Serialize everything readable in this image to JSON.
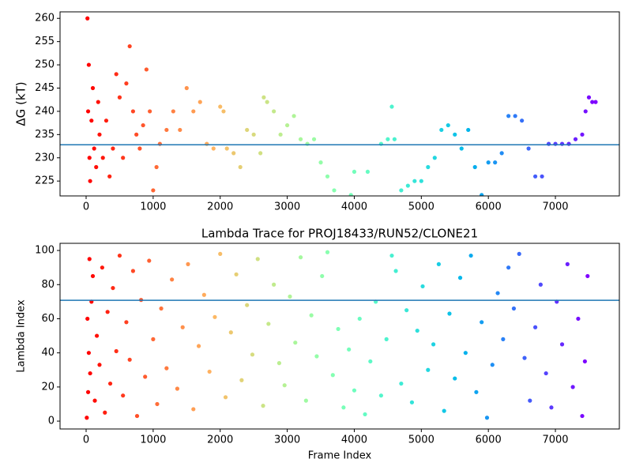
{
  "chart_data": [
    {
      "type": "scatter",
      "ylabel": "ΔG (kT)",
      "colormap": "rainbow_r",
      "x": [
        20,
        40,
        30,
        50,
        60,
        80,
        100,
        120,
        150,
        180,
        200,
        250,
        300,
        350,
        400,
        450,
        500,
        550,
        600,
        650,
        700,
        750,
        800,
        850,
        900,
        950,
        1000,
        1050,
        1100,
        1200,
        1300,
        1400,
        1500,
        1600,
        1700,
        1800,
        1900,
        2000,
        2050,
        2100,
        2200,
        2300,
        2400,
        2500,
        2600,
        2650,
        2700,
        2800,
        2900,
        3000,
        3100,
        3200,
        3300,
        3400,
        3500,
        3600,
        3700,
        3950,
        4000,
        4200,
        4400,
        4500,
        4560,
        4600,
        4700,
        4800,
        4900,
        5000,
        5100,
        5200,
        5300,
        5400,
        5500,
        5600,
        5700,
        5800,
        5900,
        6000,
        6100,
        6200,
        6300,
        6400,
        6500,
        6600,
        6700,
        6800,
        6900,
        7000,
        7100,
        7200,
        7300,
        7400,
        7450,
        7500,
        7550,
        7600
      ],
      "values": [
        260,
        250,
        240,
        230,
        225,
        238,
        245,
        232,
        228,
        242,
        235,
        230,
        238,
        226,
        232,
        248,
        243,
        230,
        246,
        254,
        240,
        235,
        232,
        237,
        249,
        240,
        223,
        228,
        233,
        236,
        240,
        236,
        245,
        240,
        242,
        233,
        232,
        241,
        240,
        232,
        231,
        228,
        236,
        235,
        231,
        243,
        242,
        240,
        235,
        237,
        239,
        234,
        233,
        234,
        229,
        226,
        223,
        222,
        227,
        227,
        233,
        234,
        241,
        234,
        223,
        224,
        225,
        225,
        228,
        230,
        236,
        237,
        235,
        232,
        236,
        228,
        222,
        229,
        229,
        231,
        239,
        239,
        238,
        232,
        226,
        226,
        233,
        233,
        233,
        233,
        234,
        235,
        240,
        243,
        242,
        242
      ],
      "xlim": [
        -389,
        7954
      ],
      "ylim": [
        221.8,
        261.4
      ],
      "xticks": [
        0,
        1000,
        2000,
        3000,
        4000,
        5000,
        6000,
        7000
      ],
      "yticks": [
        225,
        230,
        235,
        240,
        245,
        250,
        255,
        260
      ],
      "hline": 232.8,
      "hline_color": "#1f77b4"
    },
    {
      "type": "scatter",
      "title": "Lambda Trace for PROJ18433/RUN52/CLONE21",
      "xlabel": "Frame Index",
      "ylabel": "Lambda Index",
      "colormap": "rainbow_r",
      "x": [
        10,
        20,
        30,
        40,
        50,
        60,
        80,
        100,
        130,
        160,
        200,
        240,
        280,
        320,
        360,
        400,
        450,
        500,
        550,
        600,
        650,
        700,
        760,
        820,
        880,
        940,
        1000,
        1060,
        1120,
        1200,
        1280,
        1360,
        1440,
        1520,
        1600,
        1680,
        1760,
        1840,
        1920,
        2000,
        2080,
        2160,
        2240,
        2320,
        2400,
        2480,
        2560,
        2640,
        2720,
        2800,
        2880,
        2960,
        3040,
        3120,
        3200,
        3280,
        3360,
        3440,
        3520,
        3600,
        3680,
        3760,
        3840,
        3920,
        4000,
        4080,
        4160,
        4240,
        4320,
        4400,
        4480,
        4560,
        4620,
        4700,
        4780,
        4860,
        4940,
        5020,
        5100,
        5180,
        5260,
        5340,
        5420,
        5500,
        5580,
        5660,
        5740,
        5820,
        5900,
        5980,
        6060,
        6140,
        6220,
        6300,
        6380,
        6460,
        6540,
        6620,
        6700,
        6780,
        6860,
        6940,
        7020,
        7100,
        7180,
        7260,
        7340,
        7400,
        7440,
        7480
      ],
      "values": [
        2,
        60,
        17,
        40,
        95,
        28,
        70,
        85,
        12,
        50,
        33,
        90,
        5,
        64,
        22,
        78,
        41,
        97,
        15,
        58,
        36,
        88,
        3,
        71,
        26,
        94,
        48,
        10,
        66,
        31,
        83,
        19,
        55,
        92,
        7,
        44,
        74,
        29,
        61,
        98,
        14,
        52,
        86,
        24,
        68,
        39,
        95,
        9,
        57,
        80,
        34,
        21,
        73,
        46,
        96,
        12,
        62,
        38,
        85,
        99,
        27,
        54,
        8,
        42,
        18,
        60,
        4,
        35,
        70,
        15,
        48,
        97,
        88,
        22,
        65,
        11,
        53,
        79,
        30,
        45,
        92,
        6,
        63,
        25,
        84,
        40,
        97,
        17,
        58,
        2,
        33,
        75,
        48,
        90,
        66,
        98,
        37,
        12,
        55,
        80,
        28,
        8,
        70,
        45,
        92,
        20,
        60,
        3,
        35,
        85
      ],
      "xlim": [
        -389,
        7954
      ],
      "ylim": [
        -4.6,
        104.2
      ],
      "xticks": [
        0,
        1000,
        2000,
        3000,
        4000,
        5000,
        6000,
        7000
      ],
      "yticks": [
        0,
        20,
        40,
        60,
        80,
        100
      ],
      "hline": 70.8,
      "hline_color": "#1f77b4"
    }
  ]
}
